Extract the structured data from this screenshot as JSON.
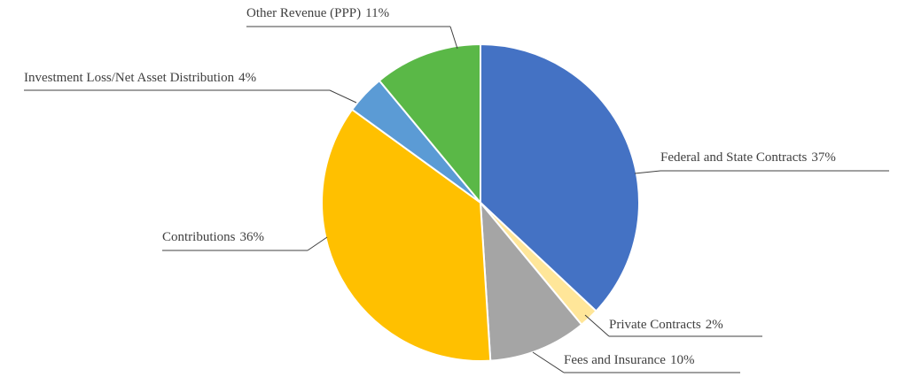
{
  "chart_data": {
    "type": "pie",
    "categories": [
      "Federal and State Contracts",
      "Private Contracts",
      "Fees and Insurance",
      "Contributions",
      "Investment Loss/Net Asset Distribution",
      "Other Revenue (PPP)"
    ],
    "values": [
      37,
      2,
      10,
      36,
      4,
      11
    ],
    "value_labels": [
      "37%",
      "2%",
      "10%",
      "36%",
      "4%",
      "11%"
    ],
    "colors": [
      "#4472c4",
      "#ffe699",
      "#a5a5a5",
      "#ffc000",
      "#5b9bd5",
      "#5ab847"
    ]
  }
}
